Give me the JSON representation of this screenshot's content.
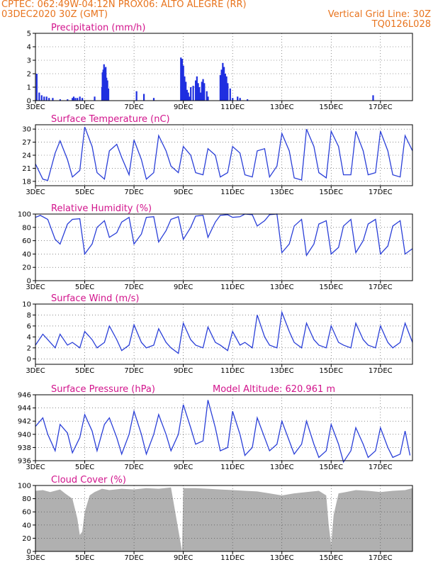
{
  "header": {
    "line1_left": "CPTEC:   062:49W-04:12N  PROX06: ALTO ALEGRE (RR)",
    "line2_left": "03DEC2020 30Z (GMT)",
    "line2_right": "Vertical Grid Line: 30Z",
    "line3_right": "TQ0126L028"
  },
  "colors": {
    "line": "#2a3fd8",
    "bar": "#1f2fe0",
    "cloud": "#b0b0b0",
    "title": "#d2148c",
    "header": "#e8741e"
  },
  "x_labels": [
    "3DEC",
    "5DEC",
    "7DEC",
    "9DEC",
    "11DEC",
    "13DEC",
    "15DEC",
    "17DEC"
  ],
  "chart_data": [
    {
      "type": "bar",
      "title": "Precipitation (mm/h)",
      "ylim": [
        0,
        5
      ],
      "yticks": [
        "0",
        "1",
        "2",
        "3",
        "4",
        "5"
      ],
      "x_days": [
        0.05,
        0.15,
        0.25,
        0.35,
        0.45,
        0.55,
        0.7,
        1.0,
        1.3,
        1.5,
        1.55,
        1.62,
        1.7,
        1.8,
        1.9,
        2.4,
        2.7,
        2.72,
        2.75,
        2.78,
        2.82,
        2.85,
        2.88,
        2.92,
        2.96,
        4.1,
        4.4,
        4.8,
        5.9,
        5.95,
        6.0,
        6.05,
        6.1,
        6.15,
        6.2,
        6.25,
        6.3,
        6.4,
        6.5,
        6.55,
        6.6,
        6.65,
        6.7,
        6.75,
        6.8,
        6.85,
        6.95,
        7.0,
        7.5,
        7.55,
        7.6,
        7.65,
        7.7,
        7.75,
        7.8,
        7.9,
        8.0,
        8.2,
        8.3,
        8.6,
        13.7
      ],
      "values": [
        2.0,
        0.6,
        0.4,
        0.3,
        0.3,
        0.2,
        0.2,
        0.1,
        0.1,
        0.2,
        0.3,
        0.2,
        0.2,
        0.3,
        0.2,
        0.3,
        1.0,
        2.1,
        2.3,
        2.7,
        2.4,
        2.5,
        1.7,
        1.5,
        0.9,
        0.7,
        0.5,
        0.2,
        3.2,
        3.1,
        2.6,
        1.8,
        1.4,
        0.8,
        0.6,
        0.3,
        1.0,
        1.1,
        1.5,
        1.8,
        1.3,
        1.0,
        0.6,
        1.4,
        1.6,
        1.3,
        0.7,
        0.3,
        1.9,
        2.3,
        2.8,
        2.5,
        2.0,
        1.8,
        1.3,
        0.9,
        0.2,
        0.3,
        0.2,
        0.1,
        0.4
      ]
    },
    {
      "type": "line",
      "title": "Surface Temperature (nC)",
      "ylim": [
        17,
        31
      ],
      "yticks": [
        "18",
        "21",
        "24",
        "27",
        "30"
      ],
      "x_days": [
        0.0,
        0.3,
        0.5,
        0.8,
        1.0,
        1.3,
        1.5,
        1.8,
        2.0,
        2.3,
        2.5,
        2.8,
        3.0,
        3.3,
        3.5,
        3.8,
        4.0,
        4.3,
        4.5,
        4.8,
        5.0,
        5.3,
        5.5,
        5.8,
        6.0,
        6.3,
        6.5,
        6.8,
        7.0,
        7.3,
        7.5,
        7.8,
        8.0,
        8.3,
        8.5,
        8.8,
        9.0,
        9.3,
        9.5,
        9.8,
        10.0,
        10.3,
        10.5,
        10.8,
        11.0,
        11.3,
        11.5,
        11.8,
        12.0,
        12.3,
        12.5,
        12.8,
        13.0,
        13.3,
        13.5,
        13.8,
        14.0,
        14.3,
        14.5,
        14.8,
        15.0,
        15.3
      ],
      "values": [
        22.0,
        18.5,
        18.2,
        24.5,
        27.3,
        23.0,
        19.0,
        20.5,
        30.5,
        26.0,
        20.0,
        18.5,
        25.0,
        26.5,
        23.5,
        19.5,
        27.5,
        23.0,
        18.5,
        20.0,
        28.5,
        25.0,
        21.5,
        20.0,
        26.0,
        24.0,
        20.0,
        19.5,
        25.5,
        24.0,
        19.0,
        20.0,
        26.0,
        24.5,
        19.5,
        19.0,
        25.0,
        25.5,
        19.0,
        21.5,
        29.0,
        25.0,
        18.8,
        18.3,
        30.0,
        26.0,
        20.0,
        18.8,
        29.5,
        26.0,
        19.5,
        19.5,
        29.5,
        25.0,
        19.5,
        20.0,
        29.5,
        25.0,
        19.5,
        19.0,
        28.5,
        25.0
      ]
    },
    {
      "type": "line",
      "title": "Relative Humidity (%)",
      "ylim": [
        0,
        100
      ],
      "yticks": [
        "0",
        "20",
        "40",
        "60",
        "80",
        "100"
      ],
      "x_days": [
        0.0,
        0.2,
        0.5,
        0.8,
        1.0,
        1.3,
        1.5,
        1.8,
        2.0,
        2.3,
        2.5,
        2.8,
        3.0,
        3.3,
        3.5,
        3.8,
        4.0,
        4.3,
        4.5,
        4.8,
        5.0,
        5.3,
        5.5,
        5.8,
        6.0,
        6.3,
        6.5,
        6.8,
        7.0,
        7.3,
        7.5,
        7.8,
        8.0,
        8.3,
        8.5,
        8.8,
        9.0,
        9.3,
        9.5,
        9.8,
        10.0,
        10.3,
        10.5,
        10.8,
        11.0,
        11.3,
        11.5,
        11.8,
        12.0,
        12.3,
        12.5,
        12.8,
        13.0,
        13.3,
        13.5,
        13.8,
        14.0,
        14.3,
        14.5,
        14.8,
        15.0,
        15.3
      ],
      "values": [
        95,
        98,
        92,
        62,
        55,
        85,
        92,
        93,
        40,
        55,
        80,
        90,
        65,
        72,
        88,
        95,
        55,
        70,
        95,
        96,
        58,
        75,
        92,
        96,
        62,
        80,
        97,
        98,
        65,
        88,
        98,
        99,
        95,
        96,
        100,
        99,
        82,
        90,
        99,
        100,
        42,
        55,
        82,
        92,
        38,
        55,
        85,
        90,
        40,
        50,
        82,
        92,
        42,
        60,
        85,
        92,
        40,
        52,
        82,
        90,
        40,
        48
      ]
    },
    {
      "type": "line",
      "title": "Surface Wind (m/s)",
      "ylim": [
        -1,
        10
      ],
      "yticks": [
        "0",
        "2",
        "4",
        "6",
        "8",
        "10"
      ],
      "x_days": [
        0.0,
        0.3,
        0.5,
        0.8,
        1.0,
        1.3,
        1.5,
        1.8,
        2.0,
        2.3,
        2.5,
        2.8,
        3.0,
        3.3,
        3.5,
        3.8,
        4.0,
        4.3,
        4.5,
        4.8,
        5.0,
        5.3,
        5.5,
        5.8,
        6.0,
        6.3,
        6.5,
        6.8,
        7.0,
        7.3,
        7.5,
        7.8,
        8.0,
        8.3,
        8.5,
        8.8,
        9.0,
        9.3,
        9.5,
        9.8,
        10.0,
        10.3,
        10.5,
        10.8,
        11.0,
        11.3,
        11.5,
        11.8,
        12.0,
        12.3,
        12.5,
        12.8,
        13.0,
        13.3,
        13.5,
        13.8,
        14.0,
        14.3,
        14.5,
        14.8,
        15.0,
        15.3
      ],
      "values": [
        2.5,
        4.5,
        3.5,
        2.0,
        4.5,
        2.5,
        3.0,
        2.0,
        5.0,
        3.5,
        2.0,
        3.0,
        6.0,
        3.5,
        1.5,
        2.5,
        6.2,
        3.0,
        2.0,
        2.5,
        5.5,
        3.0,
        2.0,
        1.0,
        6.5,
        3.5,
        2.5,
        2.0,
        5.8,
        3.0,
        2.5,
        1.5,
        5.0,
        2.5,
        3.0,
        2.0,
        8.0,
        4.0,
        2.5,
        2.0,
        8.5,
        5.0,
        3.0,
        2.0,
        6.5,
        3.5,
        2.5,
        2.0,
        6.0,
        3.0,
        2.5,
        2.0,
        6.5,
        3.5,
        2.5,
        2.0,
        6.0,
        3.0,
        2.0,
        3.0,
        6.5,
        3.0
      ]
    },
    {
      "type": "line",
      "title": "Surface Pressure (hPa)",
      "annotation": "Model Altitude: 620.961  m",
      "ylim": [
        936,
        946
      ],
      "yticks": [
        "936",
        "938",
        "940",
        "942",
        "944",
        "946"
      ],
      "x_days": [
        0.0,
        0.3,
        0.5,
        0.8,
        1.0,
        1.3,
        1.5,
        1.8,
        2.0,
        2.3,
        2.5,
        2.8,
        3.0,
        3.3,
        3.5,
        3.8,
        4.0,
        4.3,
        4.5,
        4.8,
        5.0,
        5.3,
        5.5,
        5.8,
        6.0,
        6.3,
        6.5,
        6.8,
        7.0,
        7.3,
        7.5,
        7.8,
        8.0,
        8.3,
        8.5,
        8.8,
        9.0,
        9.3,
        9.5,
        9.8,
        10.0,
        10.3,
        10.5,
        10.8,
        11.0,
        11.3,
        11.5,
        11.8,
        12.0,
        12.3,
        12.5,
        12.8,
        13.0,
        13.3,
        13.5,
        13.8,
        14.0,
        14.3,
        14.5,
        14.8,
        15.0,
        15.2
      ],
      "values": [
        941.2,
        942.5,
        940.0,
        937.5,
        941.5,
        940.2,
        937.2,
        939.5,
        943.0,
        940.5,
        937.5,
        941.5,
        942.5,
        939.5,
        937.0,
        940.0,
        943.5,
        940.0,
        937.0,
        940.0,
        943.0,
        940.0,
        937.5,
        940.0,
        944.5,
        941.0,
        938.5,
        939.0,
        945.2,
        941.0,
        937.5,
        938.0,
        943.5,
        940.0,
        936.8,
        938.0,
        942.5,
        939.5,
        937.5,
        938.5,
        942.0,
        939.0,
        937.0,
        938.5,
        942.0,
        938.5,
        936.5,
        937.5,
        941.5,
        938.5,
        935.8,
        937.5,
        941.0,
        938.5,
        936.5,
        937.5,
        941.0,
        938.0,
        936.5,
        937.0,
        940.5,
        936.8
      ]
    },
    {
      "type": "area",
      "title": "Cloud Cover (%)",
      "ylim": [
        0,
        100
      ],
      "yticks": [
        "0",
        "20",
        "40",
        "60",
        "80",
        "100"
      ],
      "x_days": [
        0.0,
        0.3,
        0.6,
        1.0,
        1.2,
        1.5,
        1.7,
        1.8,
        1.9,
        2.0,
        2.2,
        2.4,
        2.7,
        3.0,
        3.5,
        4.0,
        4.5,
        5.0,
        5.5,
        5.95,
        6.0,
        6.05,
        6.5,
        7.0,
        7.5,
        8.0,
        8.5,
        9.0,
        9.5,
        10.0,
        10.5,
        11.0,
        11.5,
        11.8,
        11.9,
        12.0,
        12.1,
        12.3,
        12.6,
        13.0,
        13.5,
        14.0,
        14.5,
        15.0,
        15.3
      ],
      "values": [
        92,
        93,
        90,
        94,
        88,
        80,
        50,
        25,
        30,
        60,
        85,
        90,
        95,
        93,
        95,
        94,
        96,
        95,
        97,
        0,
        97,
        96,
        96,
        95,
        94,
        93,
        92,
        91,
        88,
        85,
        88,
        90,
        92,
        85,
        40,
        10,
        55,
        88,
        90,
        93,
        92,
        90,
        92,
        93,
        96
      ]
    }
  ]
}
